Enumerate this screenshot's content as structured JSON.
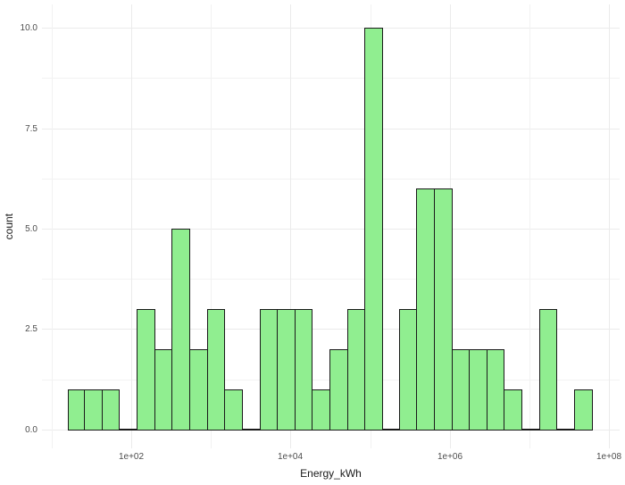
{
  "chart_data": {
    "type": "bar",
    "subtype": "histogram",
    "title": "",
    "xlabel": "Energy_kWh",
    "ylabel": "count",
    "x_scale": "log10",
    "grid": true,
    "legend": false,
    "x_tick_labels": [
      "1e+02",
      "1e+04",
      "1e+06",
      "1e+08"
    ],
    "x_tick_log10": [
      2,
      4,
      6,
      8
    ],
    "x_minor_tick_log10": [
      1,
      3,
      5,
      7
    ],
    "y_tick_labels": [
      "0.0",
      "2.5",
      "5.0",
      "7.5",
      "10.0"
    ],
    "y_tick_values": [
      0,
      2.5,
      5,
      7.5,
      10
    ],
    "y_minor_tick_values": [
      1.25,
      3.75,
      6.25,
      8.75
    ],
    "x_domain_log10": [
      0.88,
      8.13
    ],
    "y_domain": [
      -0.47,
      10.58
    ],
    "bin_edges_log10": [
      1.2,
      1.42,
      1.64,
      1.86,
      2.08,
      2.3,
      2.52,
      2.74,
      2.96,
      3.18,
      3.4,
      3.62,
      3.84,
      4.06,
      4.28,
      4.5,
      4.72,
      4.94,
      5.16,
      5.37,
      5.59,
      5.81,
      6.03,
      6.25,
      6.47,
      6.69,
      6.91,
      7.13,
      7.35,
      7.57,
      7.79
    ],
    "counts": [
      1,
      1,
      1,
      0,
      3,
      2,
      5,
      2,
      3,
      1,
      0,
      3,
      3,
      3,
      1,
      2,
      3,
      10,
      0,
      3,
      6,
      6,
      2,
      2,
      2,
      1,
      0,
      3,
      0,
      1
    ],
    "colors": {
      "bar_fill": "#90EE90",
      "bar_stroke": "#1a1a1a",
      "grid_major": "#EBEBEB",
      "grid_minor": "#F2F2F2",
      "axis_text": "#4d4d4d",
      "axis_title": "#1a1a1a",
      "background": "#ffffff"
    }
  }
}
